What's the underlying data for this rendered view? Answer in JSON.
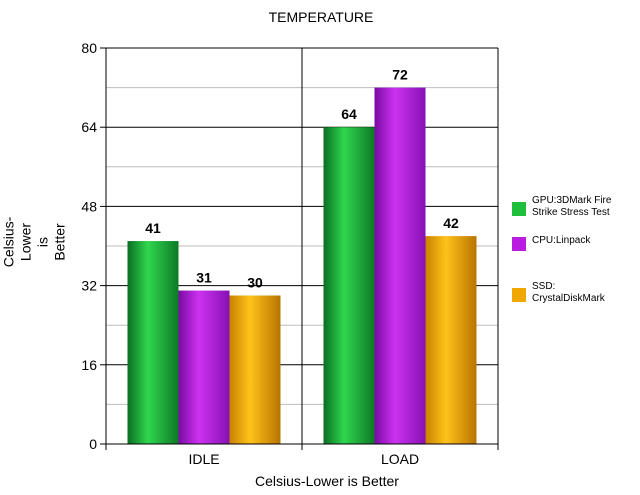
{
  "chart_data": {
    "type": "bar",
    "title": "TEMPERATURE",
    "xlabel": "Celsius-Lower is Better",
    "ylabel_lines": [
      "Celsius-",
      "Lower",
      "is",
      "Better"
    ],
    "categories": [
      "IDLE",
      "LOAD"
    ],
    "ylim": [
      0,
      80
    ],
    "yticks": [
      0,
      16,
      32,
      48,
      64,
      80
    ],
    "minor_gridlines": true,
    "legend_position": "right",
    "series": [
      {
        "name": "GPU:3DMark Fire Strike Stress Test",
        "legend_lines": [
          "GPU:3DMark Fire",
          "Strike Stress Test"
        ],
        "values": [
          41,
          64
        ],
        "color": "#1fbf3c"
      },
      {
        "name": "CPU:Linpack",
        "legend_lines": [
          "CPU:Linpack"
        ],
        "values": [
          31,
          72
        ],
        "color": "#b91be0"
      },
      {
        "name": "SSD: CrystalDiskMark",
        "legend_lines": [
          "SSD:",
          "CrystalDiskMark"
        ],
        "values": [
          30,
          42
        ],
        "color": "#f0a800"
      }
    ]
  }
}
